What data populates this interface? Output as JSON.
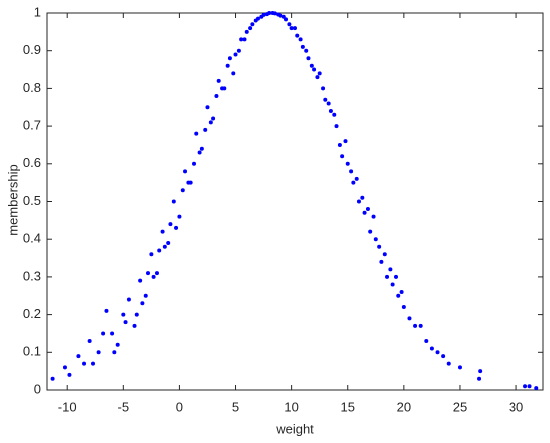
{
  "chart_data": {
    "type": "scatter",
    "xlabel": "weight",
    "ylabel": "membership",
    "color": "#0000ff",
    "xlim": [
      -11.8,
      32.4
    ],
    "ylim": [
      0,
      1
    ],
    "xticks": [
      -10,
      -5,
      0,
      5,
      10,
      15,
      20,
      25,
      30
    ],
    "yticks": [
      0,
      0.1,
      0.2,
      0.3,
      0.4,
      0.5,
      0.6,
      0.7,
      0.8,
      0.9,
      1
    ],
    "x": [
      -11.3,
      -10.2,
      -9,
      -8.5,
      -8,
      -7.2,
      -6.5,
      -6,
      -5.5,
      -5,
      -4.5,
      -4,
      -3.5,
      -3,
      -2.5,
      -2,
      -1.5,
      -1,
      -0.5,
      0,
      0.5,
      1,
      1.5,
      2,
      2.5,
      3,
      3.5,
      4,
      4.5,
      5,
      5.5,
      6,
      6.5,
      7,
      7.5,
      8,
      8.5,
      9,
      9.5,
      10,
      10.5,
      11,
      11.5,
      12,
      12.5,
      13,
      13.5,
      14,
      14.5,
      15,
      15.5,
      16,
      16.5,
      17,
      17.5,
      18,
      18.5,
      19,
      19.5,
      20,
      21,
      22,
      23,
      24,
      25,
      26.7,
      30.8,
      31.2,
      31.8,
      -9.8,
      -7.7,
      -6.8,
      -5.8,
      -4.8,
      -3.8,
      -3.3,
      -2.8,
      -2.3,
      -1.8,
      -1.3,
      -0.8,
      -0.3,
      0.3,
      0.8,
      1.3,
      1.8,
      2.3,
      2.8,
      3.3,
      3.8,
      4.3,
      4.8,
      5.3,
      5.8,
      6.3,
      6.8,
      7.3,
      7.8,
      8.3,
      8.8,
      9.3,
      9.8,
      10.3,
      10.8,
      11.3,
      11.8,
      12.3,
      12.8,
      13.3,
      13.8,
      14.3,
      14.8,
      15.3,
      15.8,
      16.3,
      16.8,
      17.3,
      17.8,
      18.3,
      18.8,
      19.3,
      19.8,
      20.5,
      21.5,
      22.5,
      23.5,
      26.8
    ],
    "values": [
      0.03,
      0.06,
      0.09,
      0.07,
      0.13,
      0.1,
      0.21,
      0.15,
      0.12,
      0.2,
      0.24,
      0.17,
      0.29,
      0.25,
      0.36,
      0.31,
      0.42,
      0.39,
      0.5,
      0.46,
      0.58,
      0.55,
      0.68,
      0.64,
      0.75,
      0.72,
      0.82,
      0.8,
      0.88,
      0.89,
      0.93,
      0.95,
      0.97,
      0.985,
      0.995,
      1.0,
      0.999,
      0.993,
      0.983,
      0.96,
      0.94,
      0.91,
      0.88,
      0.85,
      0.84,
      0.77,
      0.74,
      0.7,
      0.62,
      0.6,
      0.55,
      0.5,
      0.47,
      0.42,
      0.4,
      0.34,
      0.3,
      0.28,
      0.25,
      0.22,
      0.17,
      0.13,
      0.1,
      0.07,
      0.06,
      0.03,
      0.01,
      0.01,
      0.005,
      0.04,
      0.07,
      0.15,
      0.1,
      0.18,
      0.2,
      0.23,
      0.31,
      0.3,
      0.37,
      0.38,
      0.44,
      0.43,
      0.53,
      0.55,
      0.6,
      0.63,
      0.69,
      0.71,
      0.78,
      0.8,
      0.86,
      0.84,
      0.9,
      0.93,
      0.96,
      0.98,
      0.99,
      0.997,
      1.0,
      0.996,
      0.99,
      0.97,
      0.96,
      0.93,
      0.9,
      0.86,
      0.83,
      0.8,
      0.76,
      0.73,
      0.65,
      0.66,
      0.58,
      0.56,
      0.51,
      0.48,
      0.46,
      0.38,
      0.36,
      0.32,
      0.3,
      0.26,
      0.19,
      0.17,
      0.11,
      0.09,
      0.05
    ]
  }
}
